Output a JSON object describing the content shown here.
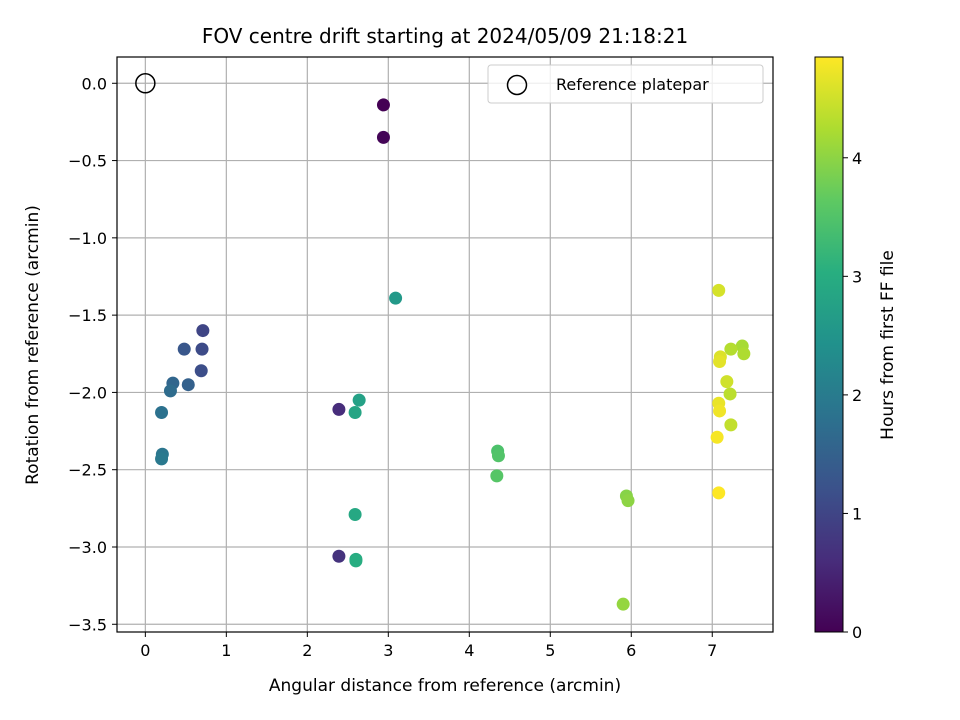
{
  "chart_data": {
    "type": "scatter",
    "title": "FOV centre drift starting at 2024/05/09 21:18:21",
    "xlabel": "Angular distance from reference (arcmin)",
    "ylabel": "Rotation from reference (arcmin)",
    "xlim": [
      -0.35,
      7.75
    ],
    "ylim": [
      -3.55,
      0.17
    ],
    "xticks": [
      0,
      1,
      2,
      3,
      4,
      5,
      6,
      7
    ],
    "yticks": [
      0.0,
      -0.5,
      -1.0,
      -1.5,
      -2.0,
      -2.5,
      -3.0,
      -3.5
    ],
    "xtick_labels": [
      "0",
      "1",
      "2",
      "3",
      "4",
      "5",
      "6",
      "7"
    ],
    "ytick_labels": [
      "0.0",
      "−0.5",
      "−1.0",
      "−1.5",
      "−2.0",
      "−2.5",
      "−3.0",
      "−3.5"
    ],
    "grid": true,
    "legend": {
      "placement": "upper-right",
      "entries": [
        {
          "label": "Reference platepar",
          "marker": "open-circle"
        }
      ]
    },
    "reference_point": {
      "x": 0,
      "y": 0
    },
    "colorbar": {
      "label": "Hours from first FF file",
      "colormap": "viridis",
      "range": [
        0,
        4.85
      ],
      "ticks": [
        0,
        1,
        2,
        3,
        4
      ],
      "tick_labels": [
        "0",
        "1",
        "2",
        "3",
        "4"
      ]
    },
    "points": [
      {
        "x": 2.94,
        "y": -0.14,
        "hours": 0.0
      },
      {
        "x": 2.94,
        "y": -0.35,
        "hours": 0.05
      },
      {
        "x": 2.39,
        "y": -2.11,
        "hours": 0.6
      },
      {
        "x": 2.39,
        "y": -3.06,
        "hours": 0.7
      },
      {
        "x": 0.71,
        "y": -1.6,
        "hours": 1.0
      },
      {
        "x": 0.7,
        "y": -1.72,
        "hours": 1.1
      },
      {
        "x": 0.69,
        "y": -1.86,
        "hours": 1.15
      },
      {
        "x": 0.48,
        "y": -1.72,
        "hours": 1.3
      },
      {
        "x": 0.53,
        "y": -1.95,
        "hours": 1.5
      },
      {
        "x": 0.34,
        "y": -1.94,
        "hours": 1.6
      },
      {
        "x": 0.31,
        "y": -1.99,
        "hours": 1.7
      },
      {
        "x": 0.2,
        "y": -2.13,
        "hours": 1.8
      },
      {
        "x": 0.21,
        "y": -2.4,
        "hours": 1.9
      },
      {
        "x": 0.2,
        "y": -2.43,
        "hours": 1.95
      },
      {
        "x": 3.09,
        "y": -1.39,
        "hours": 2.6
      },
      {
        "x": 2.64,
        "y": -2.05,
        "hours": 2.75
      },
      {
        "x": 2.59,
        "y": -2.13,
        "hours": 2.85
      },
      {
        "x": 2.59,
        "y": -2.79,
        "hours": 2.9
      },
      {
        "x": 2.6,
        "y": -3.08,
        "hours": 2.95
      },
      {
        "x": 2.6,
        "y": -3.09,
        "hours": 3.0
      },
      {
        "x": 4.35,
        "y": -2.38,
        "hours": 3.45
      },
      {
        "x": 4.36,
        "y": -2.41,
        "hours": 3.5
      },
      {
        "x": 4.34,
        "y": -2.54,
        "hours": 3.55
      },
      {
        "x": 5.94,
        "y": -2.67,
        "hours": 3.95
      },
      {
        "x": 5.96,
        "y": -2.7,
        "hours": 4.0
      },
      {
        "x": 5.9,
        "y": -3.37,
        "hours": 4.05
      },
      {
        "x": 7.37,
        "y": -1.7,
        "hours": 4.2
      },
      {
        "x": 7.39,
        "y": -1.75,
        "hours": 4.25
      },
      {
        "x": 7.23,
        "y": -1.72,
        "hours": 4.3
      },
      {
        "x": 7.22,
        "y": -2.01,
        "hours": 4.35
      },
      {
        "x": 7.23,
        "y": -2.21,
        "hours": 4.4
      },
      {
        "x": 7.18,
        "y": -1.93,
        "hours": 4.5
      },
      {
        "x": 7.08,
        "y": -1.34,
        "hours": 4.55
      },
      {
        "x": 7.1,
        "y": -1.77,
        "hours": 4.6
      },
      {
        "x": 7.09,
        "y": -1.8,
        "hours": 4.65
      },
      {
        "x": 7.08,
        "y": -2.07,
        "hours": 4.7
      },
      {
        "x": 7.09,
        "y": -2.12,
        "hours": 4.75
      },
      {
        "x": 7.06,
        "y": -2.29,
        "hours": 4.8
      },
      {
        "x": 7.08,
        "y": -2.65,
        "hours": 4.85
      }
    ]
  }
}
